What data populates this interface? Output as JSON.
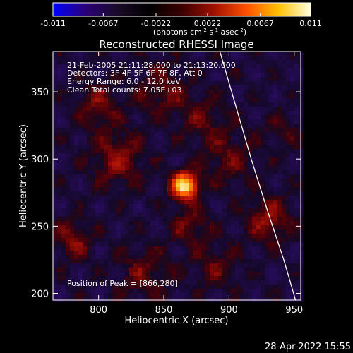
{
  "colorbar": {
    "ticks": [
      "-0.011",
      "-0.0067",
      "-0.0022",
      "0.0022",
      "0.0067",
      "0.011"
    ],
    "range": [
      -0.011,
      0.011
    ],
    "unit_prefix": "(photons cm",
    "unit_exp1": "-2",
    "unit_mid1": " s",
    "unit_exp2": "-1",
    "unit_mid2": " asec",
    "unit_exp3": "-2",
    "unit_suffix": ")",
    "colors": [
      "#0000ff",
      "#2a007a",
      "#1a0a28",
      "#000000",
      "#3a0000",
      "#a01000",
      "#ff5000",
      "#ffc000",
      "#ffffe0"
    ]
  },
  "chart_data": {
    "type": "heatmap",
    "title": "Reconstructed RHESSI Image",
    "xlabel": "Heliocentric X (arcsec)",
    "ylabel": "Heliocentric Y (arcsec)",
    "xlim": [
      765,
      955
    ],
    "ylim": [
      195,
      380
    ],
    "x_ticks": [
      "800",
      "850",
      "900",
      "950"
    ],
    "x_tick_values": [
      800,
      850,
      900,
      950
    ],
    "y_ticks": [
      "200",
      "250",
      "300",
      "350"
    ],
    "y_tick_values": [
      200,
      250,
      300,
      350
    ],
    "peak": [
      866,
      280
    ],
    "annotations": [
      "21-Feb-2005 21:11:28.000 to 21:13:20.000",
      "Detectors: 3F 4F 5F 6F 7F 8F, Att 0",
      "Energy Range: 6.0 - 12.0 keV",
      "Clean     Total counts: 7.05E+03"
    ],
    "peak_label": "Position of Peak = [866,280]",
    "limb_points": [
      [
        893,
        380
      ],
      [
        905,
        340
      ],
      [
        917,
        300
      ],
      [
        930,
        260
      ],
      [
        942,
        225
      ],
      [
        951,
        195
      ]
    ],
    "hotspots": [
      {
        "x": 866,
        "y": 280,
        "amp": 1.0,
        "sigma": 7
      },
      {
        "x": 815,
        "y": 300,
        "amp": 0.3,
        "sigma": 14
      },
      {
        "x": 800,
        "y": 340,
        "amp": 0.25,
        "sigma": 12
      },
      {
        "x": 850,
        "y": 350,
        "amp": 0.22,
        "sigma": 14
      },
      {
        "x": 930,
        "y": 255,
        "amp": 0.32,
        "sigma": 12
      },
      {
        "x": 900,
        "y": 300,
        "amp": 0.22,
        "sigma": 14
      },
      {
        "x": 780,
        "y": 240,
        "amp": 0.3,
        "sigma": 10
      },
      {
        "x": 835,
        "y": 215,
        "amp": 0.22,
        "sigma": 14
      },
      {
        "x": 890,
        "y": 220,
        "amp": 0.2,
        "sigma": 12
      },
      {
        "x": 870,
        "y": 250,
        "amp": 0.25,
        "sigma": 10
      },
      {
        "x": 880,
        "y": 330,
        "amp": 0.2,
        "sigma": 12
      },
      {
        "x": 940,
        "y": 320,
        "amp": 0.15,
        "sigma": 10
      }
    ]
  },
  "footer": {
    "timestamp": "28-Apr-2022 15:55"
  }
}
